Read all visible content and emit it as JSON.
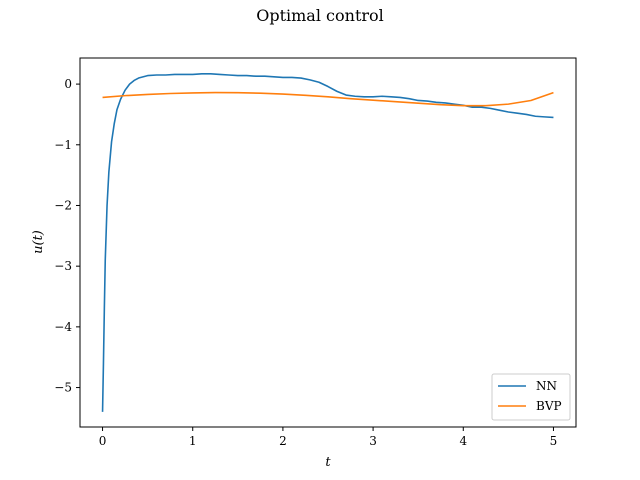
{
  "chart_data": {
    "type": "line",
    "title": "Optimal control",
    "xlabel": "t",
    "ylabel": "u(t)",
    "xlim": [
      -0.25,
      5.25
    ],
    "ylim": [
      -5.65,
      0.43
    ],
    "xticks": [
      0,
      1,
      2,
      3,
      4,
      5
    ],
    "yticks": [
      0,
      -1,
      -2,
      -3,
      -4,
      -5
    ],
    "legend_position": "lower-right",
    "grid": false,
    "series": [
      {
        "name": "NN",
        "color": "#1f77b4",
        "x": [
          0,
          0.01,
          0.02,
          0.03,
          0.05,
          0.07,
          0.1,
          0.13,
          0.16,
          0.2,
          0.25,
          0.3,
          0.35,
          0.4,
          0.5,
          0.6,
          0.7,
          0.8,
          0.9,
          1.0,
          1.1,
          1.2,
          1.3,
          1.4,
          1.5,
          1.6,
          1.7,
          1.8,
          1.9,
          2.0,
          2.1,
          2.2,
          2.3,
          2.4,
          2.5,
          2.6,
          2.7,
          2.8,
          2.9,
          3.0,
          3.1,
          3.2,
          3.3,
          3.4,
          3.5,
          3.6,
          3.7,
          3.8,
          3.9,
          4.0,
          4.1,
          4.2,
          4.3,
          4.4,
          4.5,
          4.6,
          4.7,
          4.8,
          4.9,
          5.0
        ],
        "y": [
          -5.4,
          -4.6,
          -3.7,
          -2.9,
          -2.0,
          -1.45,
          -0.95,
          -0.65,
          -0.42,
          -0.25,
          -0.1,
          0.0,
          0.06,
          0.1,
          0.14,
          0.15,
          0.15,
          0.16,
          0.16,
          0.16,
          0.17,
          0.17,
          0.16,
          0.15,
          0.14,
          0.14,
          0.13,
          0.13,
          0.12,
          0.11,
          0.11,
          0.1,
          0.07,
          0.03,
          -0.04,
          -0.12,
          -0.18,
          -0.2,
          -0.21,
          -0.21,
          -0.2,
          -0.21,
          -0.22,
          -0.24,
          -0.27,
          -0.28,
          -0.3,
          -0.31,
          -0.33,
          -0.35,
          -0.38,
          -0.38,
          -0.4,
          -0.43,
          -0.46,
          -0.48,
          -0.5,
          -0.53,
          -0.54,
          -0.55
        ]
      },
      {
        "name": "BVP",
        "color": "#ff7f0e",
        "x": [
          0,
          0.25,
          0.5,
          0.75,
          1.0,
          1.25,
          1.5,
          1.75,
          2.0,
          2.25,
          2.5,
          2.75,
          3.0,
          3.25,
          3.5,
          3.75,
          4.0,
          4.25,
          4.5,
          4.75,
          5.0
        ],
        "y": [
          -0.22,
          -0.19,
          -0.17,
          -0.155,
          -0.145,
          -0.14,
          -0.142,
          -0.15,
          -0.165,
          -0.185,
          -0.21,
          -0.24,
          -0.265,
          -0.29,
          -0.315,
          -0.34,
          -0.355,
          -0.355,
          -0.33,
          -0.27,
          -0.14
        ]
      }
    ]
  }
}
